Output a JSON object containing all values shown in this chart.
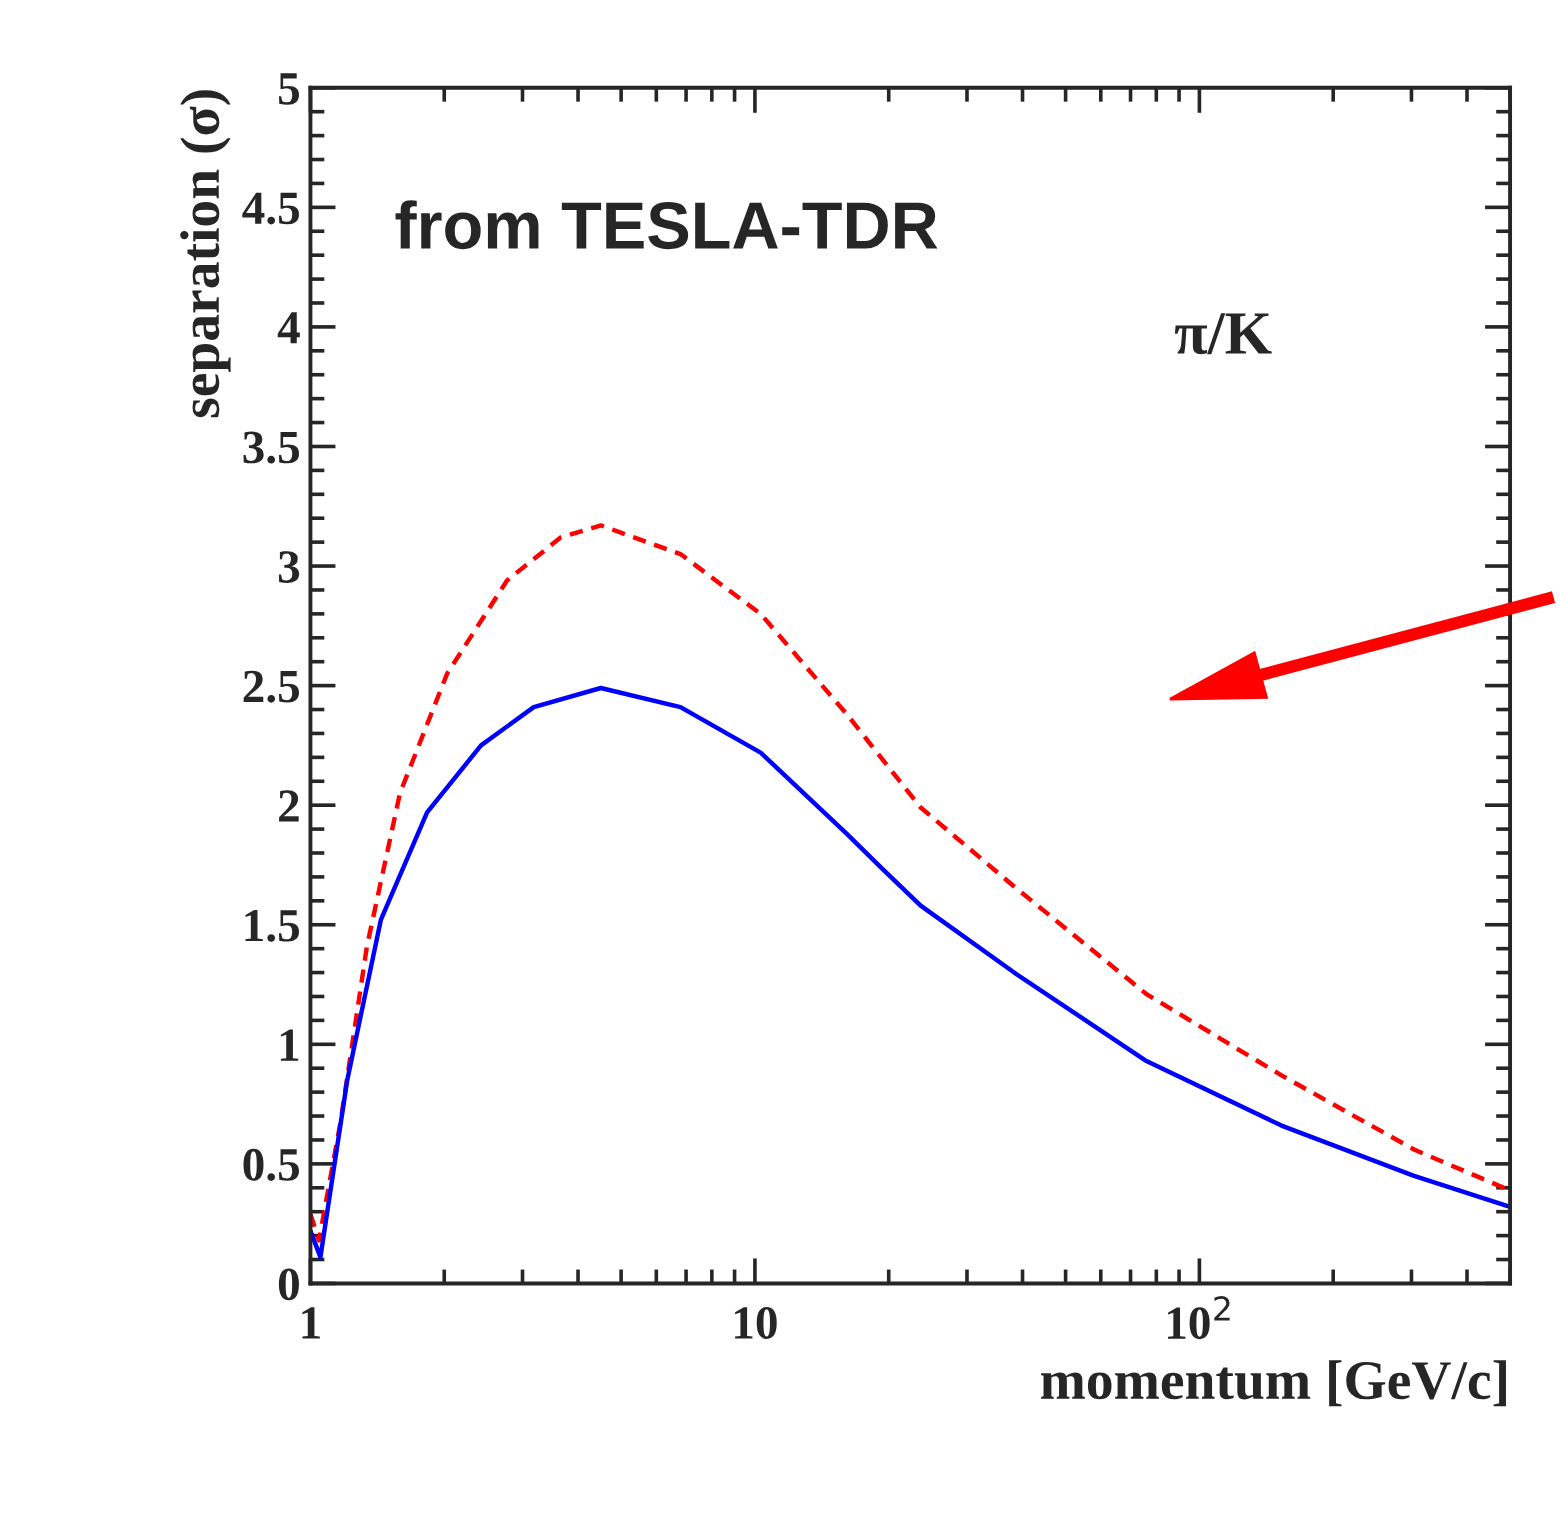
{
  "chart_data": {
    "type": "line",
    "xlabel": "momentum [GeV/c]",
    "ylabel": "separation (σ)",
    "annotations": [
      "from TESLA-TDR",
      "π/K"
    ],
    "log": "x",
    "xlim": [
      1,
      500
    ],
    "xticks": [
      1,
      10,
      {
        "value": 100,
        "label": "10$^{2}$"
      }
    ],
    "ylim": [
      0,
      5
    ],
    "yticks": [
      0,
      0.5,
      1,
      1.5,
      2,
      2.5,
      3,
      3.5,
      4,
      4.5,
      5
    ],
    "grid": false,
    "legend": false,
    "marker": "none",
    "series": [
      {
        "color": "#ff0000",
        "line_style": "dashed",
        "x": [
          1,
          1.045,
          1.17,
          1.34,
          1.59,
          2.03,
          2.77,
          3.66,
          4.5,
          6.8,
          10.3,
          16.1,
          19.2,
          23.6,
          38.3,
          76,
          153,
          304,
          470,
          500
        ],
        "values": [
          0.29,
          0.18,
          0.68,
          1.41,
          2.05,
          2.55,
          2.94,
          3.12,
          3.17,
          3.05,
          2.8,
          2.38,
          2.2,
          1.99,
          1.66,
          1.21,
          0.87,
          0.56,
          0.41,
          0.39
        ]
      },
      {
        "color": "#0000ff",
        "line_style": "solid",
        "x": [
          1,
          1.053,
          1.21,
          1.44,
          1.83,
          2.42,
          3.18,
          4.5,
          6.8,
          10.3,
          16.1,
          19.2,
          23.6,
          38.3,
          76,
          153,
          304,
          500
        ],
        "values": [
          0.22,
          0.11,
          0.85,
          1.52,
          1.97,
          2.25,
          2.41,
          2.49,
          2.41,
          2.22,
          1.88,
          1.74,
          1.58,
          1.3,
          0.93,
          0.66,
          0.45,
          0.32
        ]
      }
    ]
  }
}
